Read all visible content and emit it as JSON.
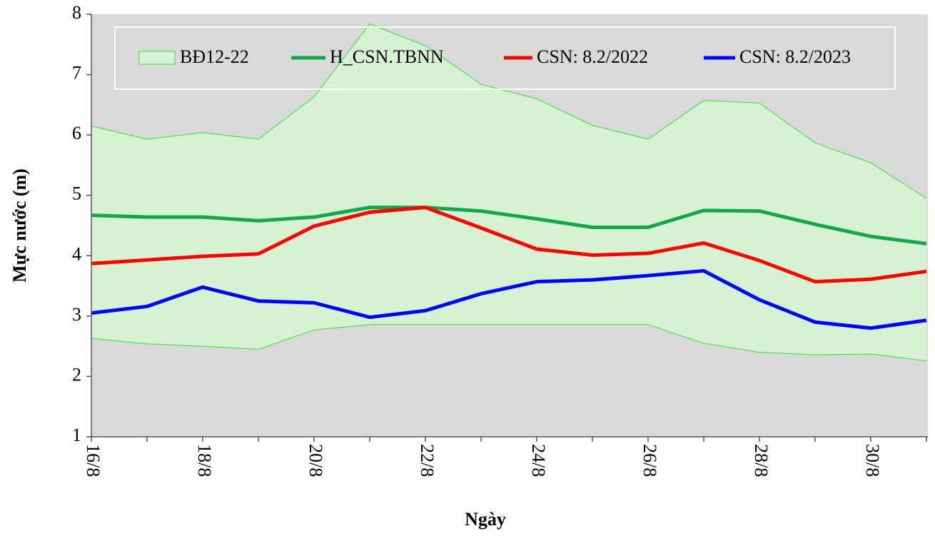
{
  "chart_data": {
    "type": "line",
    "x_label": "Ngày",
    "y_label": "Mực nước (m)",
    "categories": [
      "16/8",
      null,
      "18/8",
      null,
      "20/8",
      null,
      "22/8",
      null,
      "24/8",
      null,
      "26/8",
      null,
      "28/8",
      null,
      "30/8",
      null
    ],
    "band": {
      "name": "BĐ12-22",
      "color": "#d6f2d3",
      "edge_color": "#33dd33",
      "upper": [
        6.15,
        5.93,
        6.04,
        5.93,
        6.63,
        7.84,
        7.48,
        6.84,
        6.6,
        6.16,
        5.93,
        6.57,
        6.53,
        5.87,
        5.54,
        4.95
      ],
      "lower": [
        2.63,
        2.54,
        2.5,
        2.45,
        2.77,
        2.86,
        2.86,
        2.86,
        2.86,
        2.86,
        2.86,
        2.55,
        2.4,
        2.36,
        2.37,
        2.26
      ]
    },
    "series": [
      {
        "name": "H_CSN.TBNN",
        "color": "#11a84a",
        "values": [
          4.67,
          4.64,
          4.64,
          4.58,
          4.64,
          4.8,
          4.8,
          4.74,
          4.61,
          4.47,
          4.47,
          4.75,
          4.74,
          4.52,
          4.32,
          4.2
        ]
      },
      {
        "name": "CSN: 8.2/2022",
        "color": "#ff0000",
        "values": [
          3.87,
          3.93,
          3.99,
          4.03,
          4.49,
          4.72,
          4.8,
          4.46,
          4.11,
          4.01,
          4.04,
          4.21,
          3.92,
          3.57,
          3.61,
          3.74
        ]
      },
      {
        "name": "CSN: 8.2/2023",
        "color": "#0000ff",
        "values": [
          3.05,
          3.16,
          3.48,
          3.25,
          3.22,
          2.98,
          3.09,
          3.37,
          3.57,
          3.6,
          3.67,
          3.75,
          3.27,
          2.9,
          2.8,
          2.93
        ]
      }
    ],
    "ylim": [
      1,
      8
    ],
    "yticks": [
      1,
      2,
      3,
      4,
      5,
      6,
      7,
      8
    ]
  }
}
